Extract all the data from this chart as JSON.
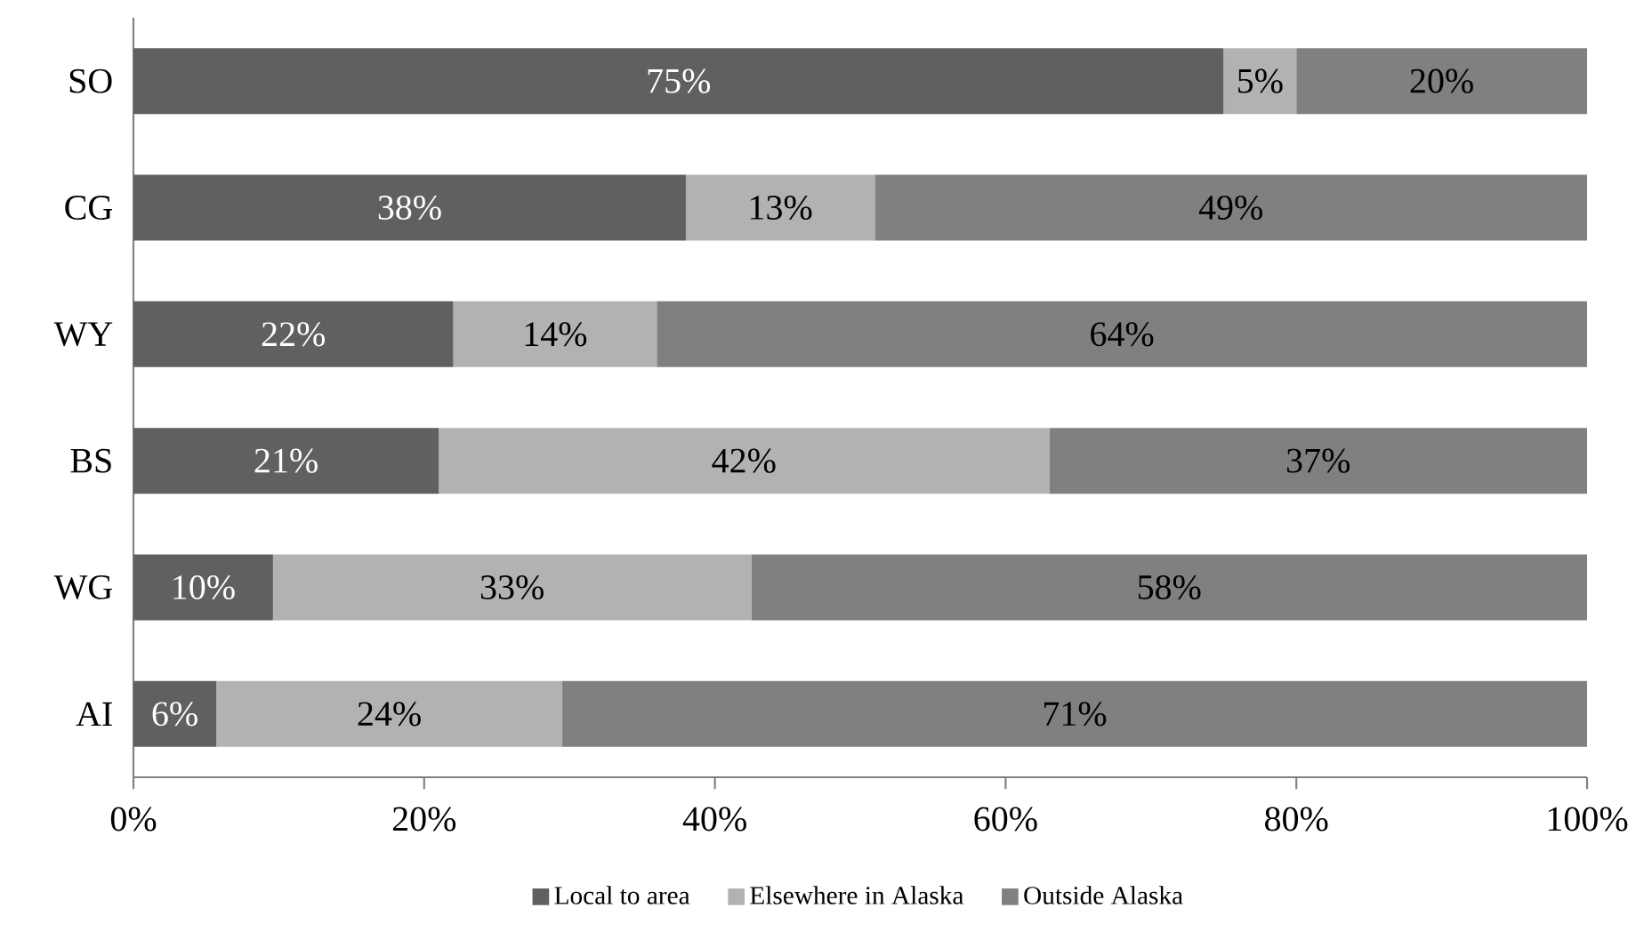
{
  "chart_data": {
    "type": "bar",
    "orientation": "horizontal",
    "stacked": true,
    "categories": [
      "SO",
      "CG",
      "WY",
      "BS",
      "WG",
      "AI"
    ],
    "series": [
      {
        "name": "Local to area",
        "color": "#606060",
        "values": [
          75,
          38,
          22,
          21,
          9.6,
          5.7
        ],
        "value_labels": [
          "75%",
          "38%",
          "22%",
          "21%",
          "10%",
          "6%"
        ]
      },
      {
        "name": "Elsewhere in Alaska",
        "color": "#b2b2b2",
        "values": [
          5,
          13,
          14,
          42,
          32.9,
          23.8
        ],
        "value_labels": [
          "5%",
          "13%",
          "14%",
          "42%",
          "33%",
          "24%"
        ]
      },
      {
        "name": "Outside Alaska",
        "color": "#808080",
        "values": [
          20,
          49,
          64,
          37,
          57.5,
          70.5
        ],
        "value_labels": [
          "20%",
          "49%",
          "64%",
          "37%",
          "58%",
          "71%"
        ]
      }
    ],
    "xlim": [
      0,
      100
    ],
    "xticks": [
      {
        "value": 0,
        "label": "0%"
      },
      {
        "value": 20,
        "label": "20%"
      },
      {
        "value": 40,
        "label": "40%"
      },
      {
        "value": 60,
        "label": "60%"
      },
      {
        "value": 80,
        "label": "80%"
      },
      {
        "value": 100,
        "label": "100%"
      }
    ],
    "grid": false,
    "legend": "bottom"
  }
}
